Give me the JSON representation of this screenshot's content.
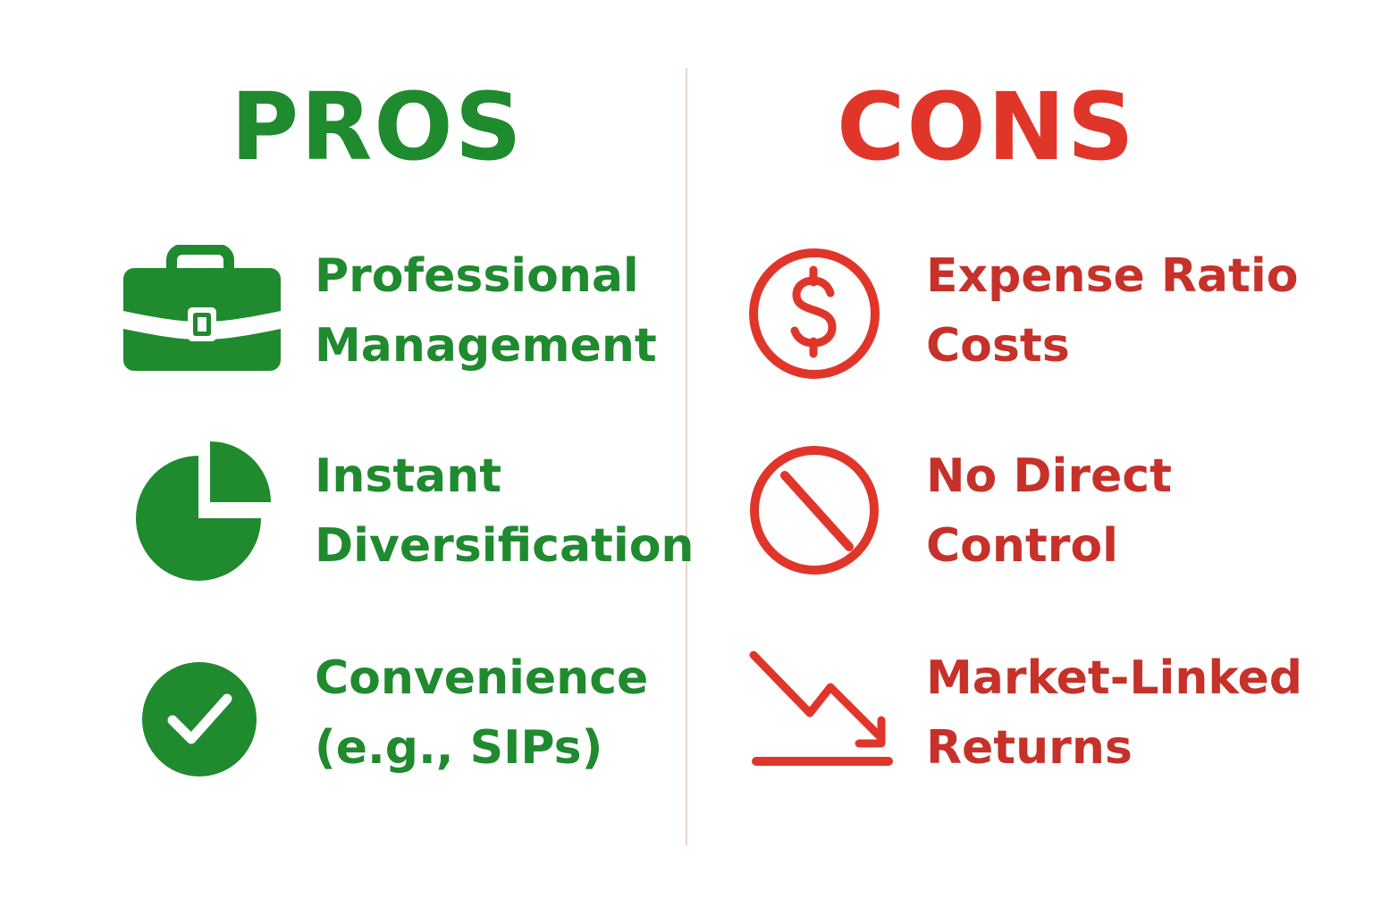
{
  "pros": {
    "heading": "PROS",
    "color": "#1f8a2e",
    "items": [
      {
        "icon": "briefcase-icon",
        "line1": "Professional",
        "line2": "Management"
      },
      {
        "icon": "pie-chart-icon",
        "line1": "Instant",
        "line2": "Diversification"
      },
      {
        "icon": "check-circle-icon",
        "line1": "Convenience",
        "line2": "(e.g., SIPs)"
      }
    ]
  },
  "cons": {
    "heading": "CONS",
    "color": "#e0362a",
    "items": [
      {
        "icon": "dollar-circle-icon",
        "line1": "Expense Ratio",
        "line2": "Costs"
      },
      {
        "icon": "prohibited-icon",
        "line1": "No Direct",
        "line2": "Control"
      },
      {
        "icon": "downtrend-arrow-icon",
        "line1": "Market-Linked",
        "line2": "Returns"
      }
    ]
  }
}
